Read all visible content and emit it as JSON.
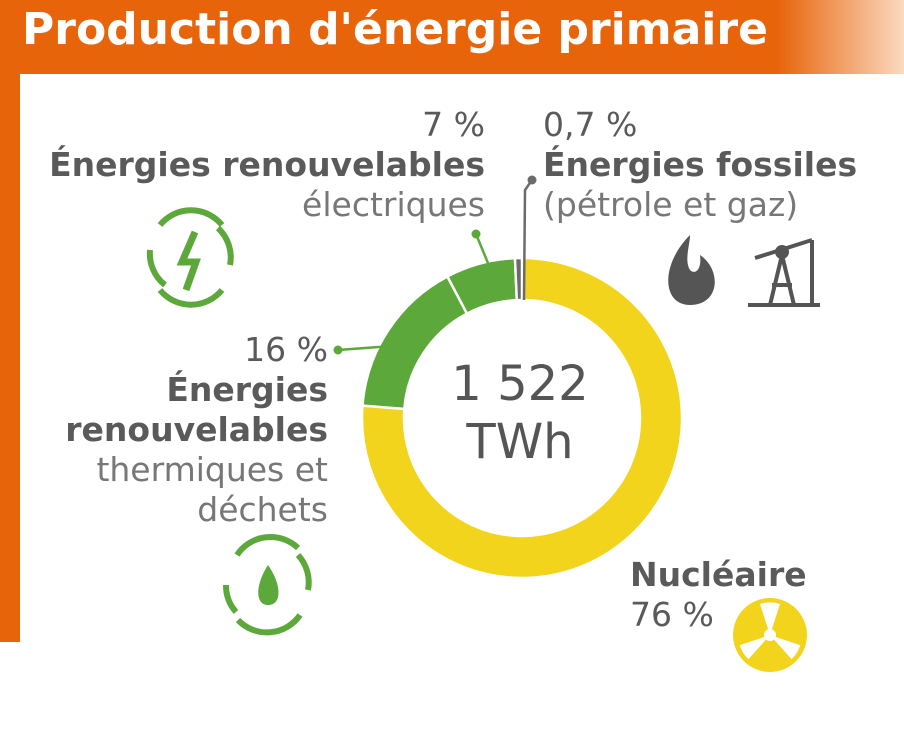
{
  "chart_data": {
    "type": "donut",
    "title": "Production d'énergie primaire",
    "center_label": "1 522 TWh",
    "categories": [
      "Nucléaire",
      "Énergies renouvelables",
      "Énergies renouvelables",
      "Énergies fossiles"
    ],
    "descriptions": [
      null,
      "thermiques et déchets",
      "électriques",
      "(pétrole et gaz)"
    ],
    "values": [
      76,
      16,
      7,
      0.7
    ],
    "value_labels": [
      "76 %",
      "16 %",
      "7 %",
      "0,7 %"
    ],
    "colors": [
      "#f2d41c",
      "#5da83b",
      "#5da83b",
      "#6b6b6b"
    ]
  }
}
